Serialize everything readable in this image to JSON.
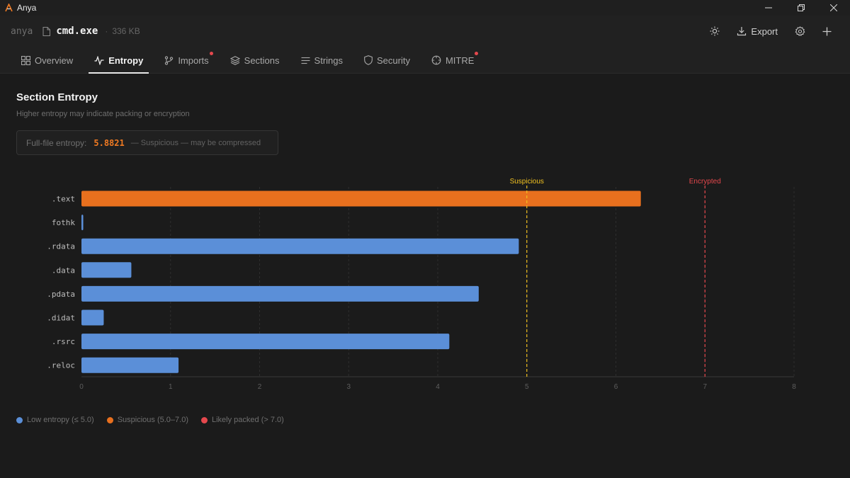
{
  "window": {
    "app_name": "Anya",
    "minimize": "—",
    "restore": "❐",
    "close": "✕"
  },
  "header": {
    "project": "anya",
    "filename": "cmd.exe",
    "filesize": "336 KB",
    "export_label": "Export"
  },
  "tabs": [
    {
      "label": "Overview",
      "icon": "grid-icon",
      "active": false,
      "dot": false
    },
    {
      "label": "Entropy",
      "icon": "pulse-icon",
      "active": true,
      "dot": false
    },
    {
      "label": "Imports",
      "icon": "branch-icon",
      "active": false,
      "dot": true
    },
    {
      "label": "Sections",
      "icon": "layers-icon",
      "active": false,
      "dot": false
    },
    {
      "label": "Strings",
      "icon": "lines-icon",
      "active": false,
      "dot": false
    },
    {
      "label": "Security",
      "icon": "shield-icon",
      "active": false,
      "dot": false
    },
    {
      "label": "MITRE",
      "icon": "target-icon",
      "active": false,
      "dot": true
    }
  ],
  "page": {
    "title": "Section Entropy",
    "subtitle": "Higher entropy may indicate packing or encryption",
    "full_entropy_label": "Full-file entropy:",
    "full_entropy_value": "5.8821",
    "full_entropy_note": "— Suspicious — may be compressed"
  },
  "colors": {
    "low": "#5b8fd8",
    "suspicious": "#e8701e",
    "packed": "#e5484d",
    "suspicious_line": "#f0c020",
    "accent_value": "#f07a22"
  },
  "chart_data": {
    "type": "bar",
    "orientation": "horizontal",
    "categories": [
      ".text",
      "fothk",
      ".rdata",
      ".data",
      ".pdata",
      ".didat",
      ".rsrc",
      ".reloc"
    ],
    "values": [
      6.28,
      0.02,
      4.91,
      0.56,
      4.46,
      0.25,
      4.13,
      1.09
    ],
    "xlim": [
      0,
      8
    ],
    "xticks": [
      0,
      1,
      2,
      3,
      4,
      5,
      6,
      7,
      8
    ],
    "thresholds": [
      {
        "label": "Suspicious",
        "value": 5,
        "color": "#f0c020"
      },
      {
        "label": "Encrypted",
        "value": 7,
        "color": "#e5484d"
      }
    ]
  },
  "legend": [
    {
      "label": "Low entropy (≤ 5.0)",
      "color": "#5b8fd8"
    },
    {
      "label": "Suspicious (5.0–7.0)",
      "color": "#e8701e"
    },
    {
      "label": "Likely packed (> 7.0)",
      "color": "#e5484d"
    }
  ]
}
